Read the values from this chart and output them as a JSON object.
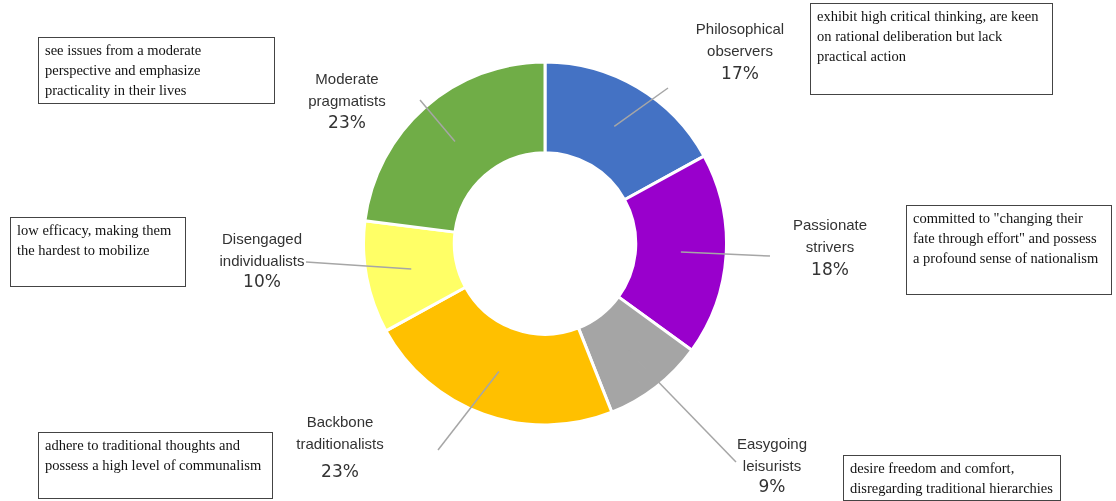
{
  "chart_data": {
    "type": "donut",
    "categories": [
      "Philosophical observers",
      "Passionate strivers",
      "Easygoing leisurists",
      "Backbone traditionalists",
      "Disengaged individualists",
      "Moderate pragmatists"
    ],
    "values": [
      17,
      18,
      9,
      23,
      10,
      23
    ],
    "value_labels": [
      "17%",
      "18%",
      "9%",
      "23%",
      "10%",
      "23%"
    ],
    "colors": [
      "#4472c4",
      "#9900cc",
      "#a5a5a5",
      "#ffc000",
      "#ffff66",
      "#70ad47"
    ],
    "annotations": [
      "exhibit high critical thinking, are keen on rational deliberation but lack practical action",
      "committed to \"changing their fate through effort\" and possess a profound sense of nationalism",
      "desire freedom and comfort, disregarding traditional hierarchies",
      "adhere to traditional thoughts and possess a high level of communalism",
      "low efficacy, making them the hardest to mobilize",
      "see issues from a moderate perspective and emphasize practicality in their lives"
    ],
    "legend": false
  }
}
